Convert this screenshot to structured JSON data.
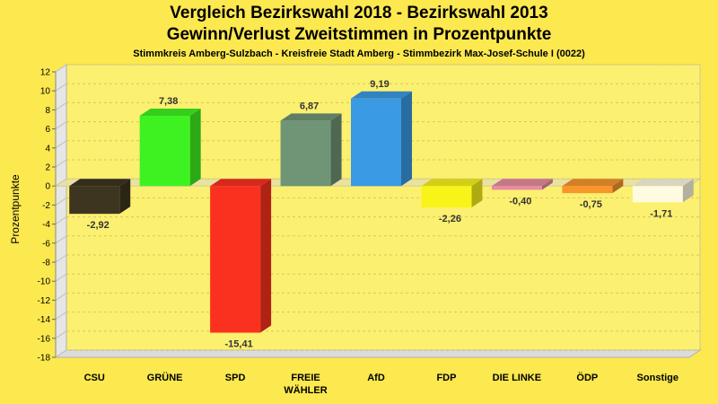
{
  "chart_data": {
    "type": "bar",
    "title": "Vergleich Bezirkswahl 2018 - Bezirkswahl 2013",
    "title2": "Gewinn/Verlust Zweitstimmen in Prozentpunkte",
    "subtitle": "Stimmkreis Amberg-Sulzbach - Kreisfreie Stadt Amberg - Stimmbezirk Max-Josef-Schule I (0022)",
    "ylabel": "Prozentpunkte",
    "xlabel": "",
    "ylim": [
      -18,
      12
    ],
    "yticks": [
      12,
      10,
      8,
      6,
      4,
      2,
      0,
      -2,
      -4,
      -6,
      -8,
      -10,
      -12,
      -14,
      -16,
      -18
    ],
    "grid": true,
    "categories": [
      "CSU",
      "GRÜNE",
      "SPD",
      "FREIE WÄHLER",
      "AfD",
      "FDP",
      "DIE LINKE",
      "ÖDP",
      "Sonstige"
    ],
    "category_lines": [
      [
        "CSU"
      ],
      [
        "GRÜNE"
      ],
      [
        "SPD"
      ],
      [
        "FREIE",
        "WÄHLER"
      ],
      [
        "AfD"
      ],
      [
        "FDP"
      ],
      [
        "DIE LINKE"
      ],
      [
        "ÖDP"
      ],
      [
        "Sonstige"
      ]
    ],
    "values": [
      -2.92,
      7.38,
      -15.41,
      6.87,
      9.19,
      -2.26,
      -0.4,
      -0.75,
      -1.71
    ],
    "value_labels": [
      "-2,92",
      "7,38",
      "-15,41",
      "6,87",
      "9,19",
      "-2,26",
      "-0,40",
      "-0,75",
      "-1,71"
    ],
    "colors": [
      "#3d3520",
      "#3ef221",
      "#fb3120",
      "#6f9576",
      "#3a9ae4",
      "#f8f41a",
      "#e88ca0",
      "#f8962c",
      "#fffbe0"
    ],
    "background_color": "#fce84f",
    "plot_color": "#fcf070"
  }
}
